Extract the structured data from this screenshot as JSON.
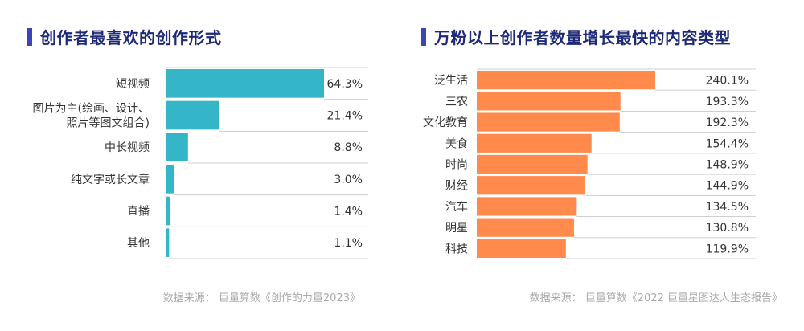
{
  "colors": {
    "title_accent": "#3a46b5",
    "left_bar": "#35b5c8",
    "right_bar": "#ff8a4c",
    "row_line": "#cfcfcf",
    "source_text": "#a9a9a9"
  },
  "left": {
    "title": "创作者最喜欢的创作形式",
    "source": "数据来源：  巨量算数《创作的力量2023》"
  },
  "right": {
    "title": "万粉以上创作者数量增长最快的内容类型",
    "source": "数据来源：  巨量算数《2022 巨量星图达人生态报告》"
  },
  "chart_data": [
    {
      "type": "bar",
      "orientation": "horizontal",
      "title": "创作者最喜欢的创作形式",
      "categories": [
        [
          "短视频"
        ],
        [
          "图片为主(绘画、设计、",
          "照片等图文组合)"
        ],
        [
          "中长视频"
        ],
        [
          "纯文字或长文章"
        ],
        [
          "直播"
        ],
        [
          "其他"
        ]
      ],
      "values": [
        64.3,
        21.4,
        8.8,
        3.0,
        1.4,
        1.1
      ],
      "value_labels": [
        "64.3%",
        "21.4%",
        "8.8%",
        "3.0%",
        "1.4%",
        "1.1%"
      ],
      "unit": "%",
      "xlim": [
        0,
        64.3
      ],
      "grid": false,
      "legend": "none"
    },
    {
      "type": "bar",
      "orientation": "horizontal",
      "title": "万粉以上创作者数量增长最快的内容类型",
      "categories": [
        [
          "泛生活"
        ],
        [
          "三农"
        ],
        [
          "文化教育"
        ],
        [
          "美食"
        ],
        [
          "时尚"
        ],
        [
          "财经"
        ],
        [
          "汽车"
        ],
        [
          "明星"
        ],
        [
          "科技"
        ]
      ],
      "values": [
        240.1,
        193.3,
        192.3,
        154.4,
        148.9,
        144.9,
        134.5,
        130.8,
        119.9
      ],
      "value_labels": [
        "240.1%",
        "193.3%",
        "192.3%",
        "154.4%",
        "148.9%",
        "144.9%",
        "134.5%",
        "130.8%",
        "119.9%"
      ],
      "unit": "%",
      "xlim": [
        0,
        240.1
      ],
      "grid": false,
      "legend": "none"
    }
  ]
}
